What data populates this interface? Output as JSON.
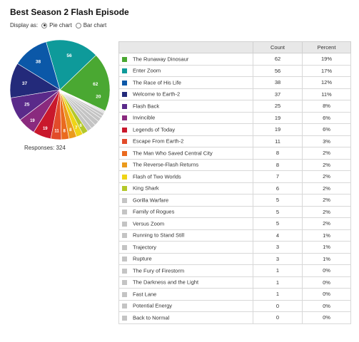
{
  "title": "Best Season 2 Flash Episode",
  "display": {
    "label": "Display as:",
    "options": [
      {
        "label": "Pie chart",
        "selected": true
      },
      {
        "label": "Bar chart",
        "selected": false
      }
    ]
  },
  "responses_text": "Responses: 324",
  "table": {
    "headers": [
      "",
      "Count",
      "Percent"
    ]
  },
  "chart_data": {
    "type": "pie",
    "total_responses": 324,
    "categories": [
      "The Runaway Dinosaur",
      "Enter Zoom",
      "The Race of His Life",
      "Welcome to Earth-2",
      "Flash Back",
      "Invincible",
      "Legends of Today",
      "Escape From Earth-2",
      "The Man Who Saved Central City",
      "The Reverse-Flash Returns",
      "Flash of Two Worlds",
      "King Shark",
      "Gorilla Warfare",
      "Family of Rogues",
      "Versus Zoom",
      "Running to Stand Still",
      "Trajectory",
      "Rupture",
      "The Fury of Firestorm",
      "The Darkness and the Light",
      "Fast Lane",
      "Potential Energy",
      "Back to Normal"
    ],
    "values": [
      62,
      56,
      38,
      37,
      25,
      19,
      19,
      11,
      8,
      8,
      7,
      6,
      5,
      5,
      5,
      4,
      3,
      3,
      1,
      1,
      1,
      0,
      0
    ],
    "percents": [
      "19%",
      "17%",
      "12%",
      "11%",
      "8%",
      "6%",
      "6%",
      "3%",
      "2%",
      "2%",
      "2%",
      "2%",
      "2%",
      "2%",
      "2%",
      "1%",
      "1%",
      "1%",
      "0%",
      "0%",
      "0%",
      "0%",
      "0%"
    ],
    "colors": [
      "#4aa832",
      "#0e9a9a",
      "#0b58a8",
      "#232a7a",
      "#5a2a8a",
      "#8a2a7e",
      "#c9182c",
      "#e24b2a",
      "#ea6a1e",
      "#eb9a1c",
      "#efd416",
      "#b4c82a",
      "#c4c4c4",
      "#c4c4c4",
      "#c4c4c4",
      "#c4c4c4",
      "#c4c4c4",
      "#c4c4c4",
      "#c4c4c4",
      "#c4c4c4",
      "#c4c4c4",
      "#c4c4c4",
      "#c4c4c4"
    ],
    "other_label_value": 20
  }
}
